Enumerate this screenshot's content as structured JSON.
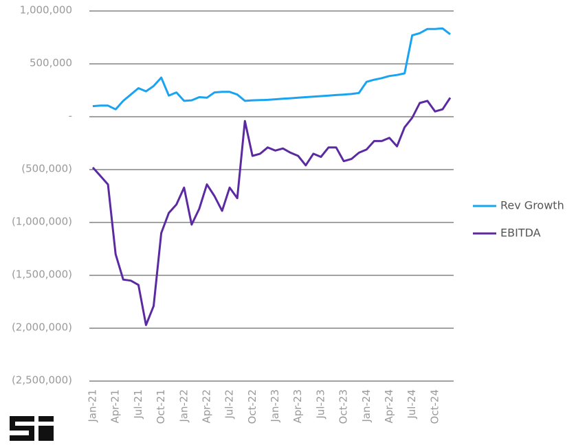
{
  "chart_data": {
    "type": "line",
    "categories": [
      "Jan-21",
      null,
      null,
      "Apr-21",
      null,
      null,
      "Jul-21",
      null,
      null,
      "Oct-21",
      null,
      null,
      "Jan-22",
      null,
      null,
      "Apr-22",
      null,
      null,
      "Jul-22",
      null,
      null,
      "Oct-22",
      null,
      null,
      "Jan-23",
      null,
      null,
      "Apr-23",
      null,
      null,
      "Jul-23",
      null,
      null,
      "Oct-23",
      null,
      null,
      "Jan-24",
      null,
      null,
      "Apr-24",
      null,
      null,
      "Jul-24",
      null,
      null,
      "Oct-24",
      null,
      null
    ],
    "series": [
      {
        "name": "Rev Growth",
        "color": "#1aa3f0",
        "values": [
          100000,
          105000,
          105000,
          70000,
          150000,
          210000,
          270000,
          240000,
          290000,
          370000,
          200000,
          230000,
          150000,
          155000,
          185000,
          180000,
          230000,
          235000,
          235000,
          210000,
          150000,
          155000,
          157000,
          160000,
          165000,
          170000,
          175000,
          180000,
          185000,
          190000,
          195000,
          200000,
          205000,
          210000,
          215000,
          225000,
          330000,
          350000,
          365000,
          385000,
          395000,
          410000,
          770000,
          790000,
          830000,
          830000,
          835000,
          780000
        ]
      },
      {
        "name": "EBITDA",
        "color": "#5b2aa0",
        "values": [
          -480000,
          -560000,
          -640000,
          -1300000,
          -1540000,
          -1550000,
          -1590000,
          -1970000,
          -1790000,
          -1100000,
          -910000,
          -830000,
          -670000,
          -1020000,
          -870000,
          -640000,
          -750000,
          -890000,
          -670000,
          -770000,
          -40000,
          -370000,
          -350000,
          -290000,
          -320000,
          -300000,
          -340000,
          -370000,
          -460000,
          -350000,
          -380000,
          -290000,
          -290000,
          -420000,
          -400000,
          -340000,
          -310000,
          -230000,
          -230000,
          -200000,
          -280000,
          -100000,
          -10000,
          130000,
          150000,
          50000,
          70000,
          180000
        ]
      }
    ],
    "ylim": [
      -2500000,
      1000000
    ],
    "yticks": [
      {
        "value": -2500000,
        "label": "(2,500,000)"
      },
      {
        "value": -2000000,
        "label": "(2,000,000)"
      },
      {
        "value": -1500000,
        "label": "(1,500,000)"
      },
      {
        "value": -1000000,
        "label": "(1,000,000)"
      },
      {
        "value": -500000,
        "label": "(500,000)"
      },
      {
        "value": 0,
        "label": "-"
      },
      {
        "value": 500000,
        "label": "500,000"
      },
      {
        "value": 1000000,
        "label": "1,000,000"
      }
    ],
    "grid": true,
    "legend": "right"
  }
}
